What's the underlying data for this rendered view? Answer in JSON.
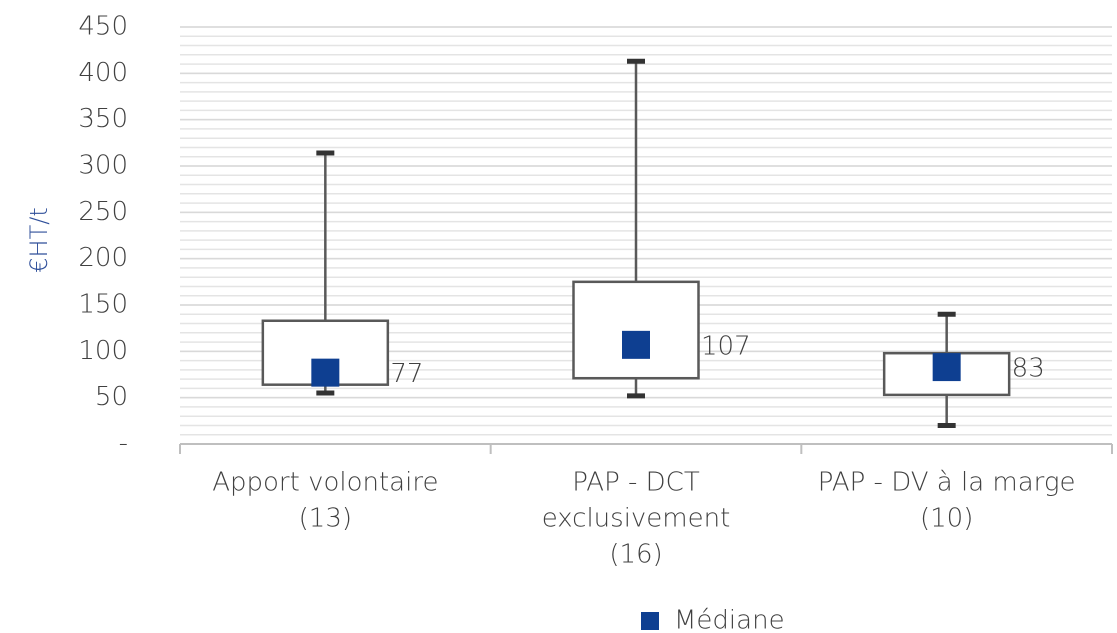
{
  "chart_data": {
    "type": "box",
    "y_label": "€HT/t",
    "categories": [
      [
        "Apport volontaire",
        "(13)"
      ],
      [
        "PAP - DCT",
        "exclusivement",
        "(16)"
      ],
      [
        "PAP - DV à la marge",
        "(10)"
      ]
    ],
    "min": [
      55,
      52,
      20
    ],
    "q1": [
      64,
      71,
      53
    ],
    "q3": [
      133,
      175,
      98
    ],
    "max": [
      314,
      413,
      140
    ],
    "series": [
      {
        "name": "Médiane",
        "color": "#0e3f91",
        "values": [
          77,
          107,
          83
        ]
      }
    ],
    "box_color": "#595959",
    "ylim": [
      0,
      450
    ],
    "yticks": [
      {
        "value": 0,
        "label": "-"
      },
      50,
      100,
      150,
      200,
      250,
      300,
      350,
      400,
      450
    ],
    "minor_ytick_step": 10,
    "grid": true,
    "legend": "bottom"
  }
}
